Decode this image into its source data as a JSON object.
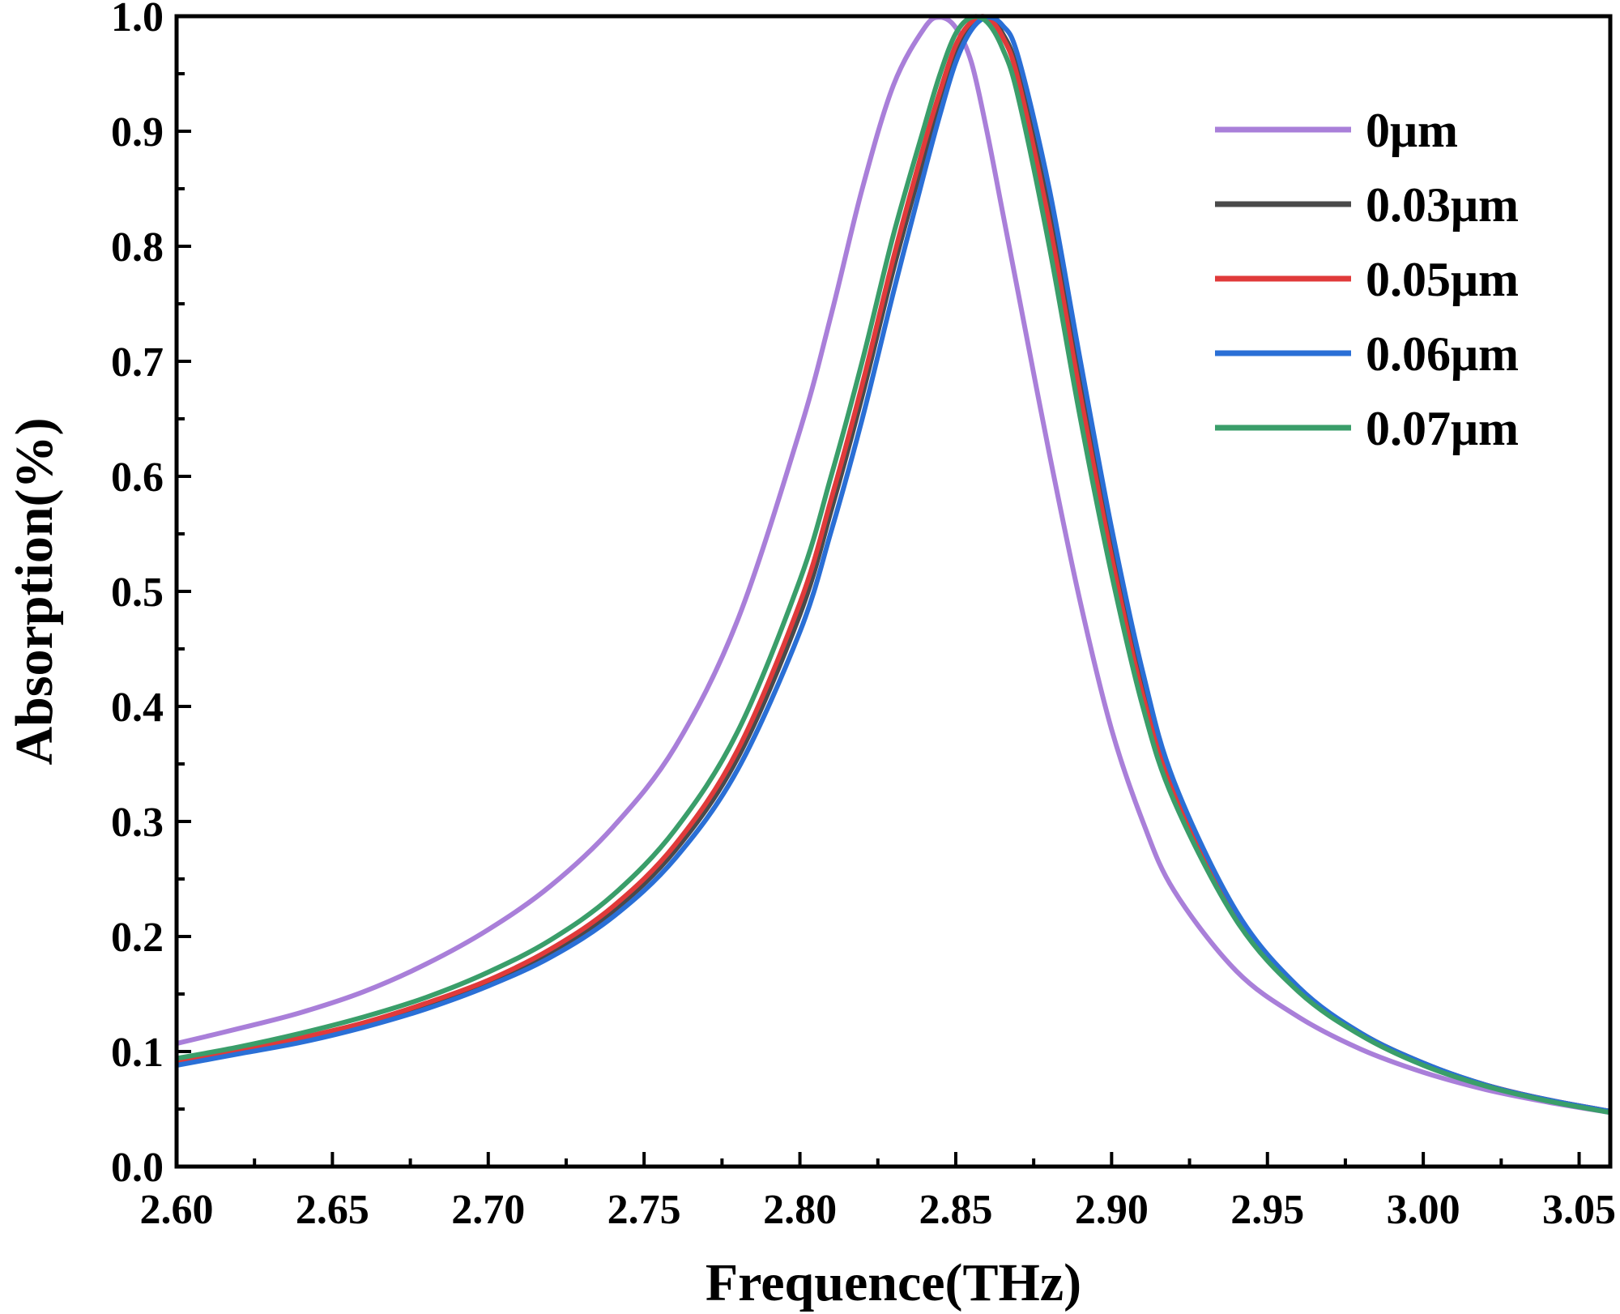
{
  "chart_data": {
    "type": "line",
    "title": "",
    "xlabel": "Frequence(THz)",
    "ylabel": "Absorption(%)",
    "xlim": [
      2.6,
      3.06
    ],
    "ylim": [
      0.0,
      1.0
    ],
    "xticks": [
      "2.60",
      "2.65",
      "2.70",
      "2.75",
      "2.80",
      "2.85",
      "2.90",
      "2.95",
      "3.00",
      "3.05"
    ],
    "yticks": [
      "0.0",
      "0.1",
      "0.2",
      "0.3",
      "0.4",
      "0.5",
      "0.6",
      "0.7",
      "0.8",
      "0.9",
      "1.0"
    ],
    "grid": false,
    "legend_position": "top-right",
    "x": [
      2.6,
      2.62,
      2.64,
      2.66,
      2.68,
      2.7,
      2.72,
      2.74,
      2.76,
      2.78,
      2.8,
      2.81,
      2.82,
      2.83,
      2.84,
      2.845,
      2.85,
      2.855,
      2.86,
      2.865,
      2.87,
      2.88,
      2.89,
      2.9,
      2.91,
      2.92,
      2.94,
      2.96,
      2.98,
      3.0,
      3.02,
      3.04,
      3.06
    ],
    "series": [
      {
        "name": "0μm",
        "color": "#a97fd9",
        "values": [
          0.107,
          0.12,
          0.134,
          0.152,
          0.176,
          0.206,
          0.244,
          0.295,
          0.365,
          0.475,
          0.64,
          0.74,
          0.85,
          0.94,
          0.99,
          0.999,
          0.99,
          0.96,
          0.9,
          0.83,
          0.76,
          0.62,
          0.49,
          0.38,
          0.3,
          0.24,
          0.17,
          0.13,
          0.102,
          0.082,
          0.067,
          0.056,
          0.047
        ]
      },
      {
        "name": "0.03μm",
        "color": "#4a4a4a",
        "values": [
          0.09,
          0.1,
          0.111,
          0.124,
          0.14,
          0.16,
          0.186,
          0.222,
          0.275,
          0.355,
          0.48,
          0.57,
          0.67,
          0.78,
          0.88,
          0.93,
          0.97,
          0.993,
          0.999,
          0.985,
          0.95,
          0.83,
          0.68,
          0.54,
          0.42,
          0.33,
          0.22,
          0.155,
          0.116,
          0.09,
          0.071,
          0.058,
          0.048
        ]
      },
      {
        "name": "0.05μm",
        "color": "#e03a3a",
        "values": [
          0.091,
          0.101,
          0.112,
          0.125,
          0.142,
          0.162,
          0.189,
          0.226,
          0.28,
          0.362,
          0.49,
          0.58,
          0.68,
          0.79,
          0.89,
          0.935,
          0.975,
          0.995,
          0.999,
          0.982,
          0.945,
          0.82,
          0.67,
          0.53,
          0.41,
          0.325,
          0.218,
          0.154,
          0.115,
          0.089,
          0.071,
          0.058,
          0.048
        ]
      },
      {
        "name": "0.06μm",
        "color": "#2a6fd6",
        "values": [
          0.088,
          0.098,
          0.108,
          0.121,
          0.137,
          0.157,
          0.182,
          0.217,
          0.268,
          0.345,
          0.465,
          0.552,
          0.65,
          0.76,
          0.865,
          0.915,
          0.96,
          0.988,
          0.999,
          0.992,
          0.965,
          0.85,
          0.7,
          0.555,
          0.43,
          0.335,
          0.222,
          0.156,
          0.116,
          0.09,
          0.071,
          0.058,
          0.048
        ]
      },
      {
        "name": "0.07μm",
        "color": "#3a9e6a",
        "values": [
          0.094,
          0.104,
          0.116,
          0.13,
          0.147,
          0.169,
          0.197,
          0.236,
          0.293,
          0.378,
          0.51,
          0.6,
          0.7,
          0.81,
          0.905,
          0.95,
          0.985,
          0.999,
          0.995,
          0.972,
          0.93,
          0.8,
          0.65,
          0.515,
          0.4,
          0.318,
          0.214,
          0.152,
          0.114,
          0.088,
          0.07,
          0.057,
          0.047
        ]
      }
    ]
  }
}
